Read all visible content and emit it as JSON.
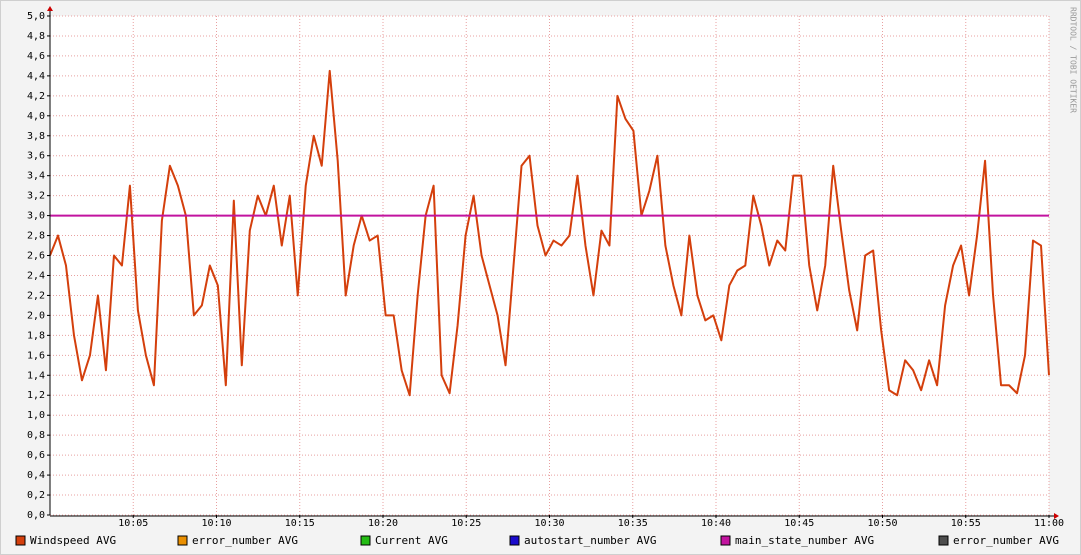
{
  "chart_data": {
    "type": "line",
    "watermark": "RRDTOOL / TOBI OETIKER",
    "xlim": [
      0,
      60
    ],
    "xticks": [
      {
        "value": 5,
        "label": "10:05"
      },
      {
        "value": 10,
        "label": "10:10"
      },
      {
        "value": 15,
        "label": "10:15"
      },
      {
        "value": 20,
        "label": "10:20"
      },
      {
        "value": 25,
        "label": "10:25"
      },
      {
        "value": 30,
        "label": "10:30"
      },
      {
        "value": 35,
        "label": "10:35"
      },
      {
        "value": 40,
        "label": "10:40"
      },
      {
        "value": 45,
        "label": "10:45"
      },
      {
        "value": 50,
        "label": "10:50"
      },
      {
        "value": 55,
        "label": "10:55"
      },
      {
        "value": 60,
        "label": "11:00"
      }
    ],
    "ylim": [
      0,
      5
    ],
    "yticks": [
      {
        "value": 0,
        "label": "0,0"
      },
      {
        "value": 0.2,
        "label": "0,2"
      },
      {
        "value": 0.4,
        "label": "0,4"
      },
      {
        "value": 0.6,
        "label": "0,6"
      },
      {
        "value": 0.8,
        "label": "0,8"
      },
      {
        "value": 1,
        "label": "1,0"
      },
      {
        "value": 1.2,
        "label": "1,2"
      },
      {
        "value": 1.4,
        "label": "1,4"
      },
      {
        "value": 1.6,
        "label": "1,6"
      },
      {
        "value": 1.8,
        "label": "1,8"
      },
      {
        "value": 2,
        "label": "2,0"
      },
      {
        "value": 2.2,
        "label": "2,2"
      },
      {
        "value": 2.4,
        "label": "2,4"
      },
      {
        "value": 2.6,
        "label": "2,6"
      },
      {
        "value": 2.8,
        "label": "2,8"
      },
      {
        "value": 3,
        "label": "3,0"
      },
      {
        "value": 3.2,
        "label": "3,2"
      },
      {
        "value": 3.4,
        "label": "3,4"
      },
      {
        "value": 3.6,
        "label": "3,6"
      },
      {
        "value": 3.8,
        "label": "3,8"
      },
      {
        "value": 4,
        "label": "4,0"
      },
      {
        "value": 4.2,
        "label": "4,2"
      },
      {
        "value": 4.4,
        "label": "4,4"
      },
      {
        "value": 4.6,
        "label": "4,6"
      },
      {
        "value": 4.8,
        "label": "4,8"
      },
      {
        "value": 5,
        "label": "5,0"
      }
    ],
    "grid": true,
    "series": [
      {
        "name": "Windspeed AVG",
        "color": "#d43f0c",
        "x": [
          0,
          0.48,
          0.96,
          1.44,
          1.92,
          2.4,
          2.88,
          3.36,
          3.84,
          4.32,
          4.8,
          5.28,
          5.76,
          6.24,
          6.72,
          7.2,
          7.68,
          8.16,
          8.64,
          9.12,
          9.6,
          10.08,
          10.56,
          11.04,
          11.52,
          12,
          12.48,
          12.96,
          13.44,
          13.92,
          14.4,
          14.88,
          15.36,
          15.84,
          16.32,
          16.8,
          17.28,
          17.76,
          18.24,
          18.72,
          19.2,
          19.68,
          20.16,
          20.64,
          21.12,
          21.6,
          22.08,
          22.56,
          23.04,
          23.52,
          24,
          24.48,
          24.96,
          25.44,
          25.92,
          26.4,
          26.88,
          27.36,
          27.84,
          28.32,
          28.8,
          29.28,
          29.76,
          30.24,
          30.72,
          31.2,
          31.68,
          32.16,
          32.64,
          33.12,
          33.6,
          34.08,
          34.56,
          35.04,
          35.52,
          36,
          36.48,
          36.96,
          37.44,
          37.92,
          38.4,
          38.88,
          39.36,
          39.84,
          40.32,
          40.8,
          41.28,
          41.76,
          42.24,
          42.72,
          43.2,
          43.68,
          44.16,
          44.64,
          45.12,
          45.6,
          46.08,
          46.56,
          47.04,
          47.52,
          48,
          48.48,
          48.96,
          49.44,
          49.92,
          50.4,
          50.88,
          51.36,
          51.84,
          52.32,
          52.8,
          53.28,
          53.76,
          54.24,
          54.72,
          55.2,
          55.68,
          56.16,
          56.64,
          57.12,
          57.6,
          58.08,
          58.56,
          59.04,
          59.52,
          60
        ],
        "values": [
          2.6,
          2.8,
          2.5,
          1.8,
          1.35,
          1.6,
          2.2,
          1.45,
          2.6,
          2.5,
          3.3,
          2.05,
          1.6,
          1.3,
          2.95,
          3.5,
          3.3,
          3.0,
          2.0,
          2.1,
          2.5,
          2.3,
          1.3,
          3.15,
          1.5,
          2.85,
          3.2,
          3.0,
          3.3,
          2.7,
          3.2,
          2.2,
          3.3,
          3.8,
          3.5,
          4.45,
          3.55,
          2.2,
          2.7,
          3.0,
          2.75,
          2.8,
          2.0,
          2.0,
          1.45,
          1.2,
          2.2,
          3.0,
          3.3,
          1.4,
          1.22,
          1.9,
          2.8,
          3.2,
          2.6,
          2.3,
          2.0,
          1.5,
          2.5,
          3.5,
          3.6,
          2.9,
          2.6,
          2.75,
          2.7,
          2.8,
          3.4,
          2.7,
          2.2,
          2.85,
          2.7,
          4.2,
          3.97,
          3.85,
          3.0,
          3.25,
          3.6,
          2.7,
          2.3,
          2.0,
          2.8,
          2.2,
          1.95,
          2.0,
          1.75,
          2.3,
          2.45,
          2.5,
          3.2,
          2.9,
          2.5,
          2.75,
          2.65,
          3.4,
          3.4,
          2.5,
          2.05,
          2.5,
          3.5,
          2.85,
          2.25,
          1.85,
          2.6,
          2.65,
          1.85,
          1.25,
          1.2,
          1.55,
          1.45,
          1.25,
          1.55,
          1.3,
          2.1,
          2.5,
          2.7,
          2.2,
          2.8,
          3.55,
          2.2,
          1.3,
          1.3,
          1.22,
          1.6,
          2.75,
          2.7,
          1.4
        ]
      },
      {
        "name": "error_number AVG",
        "color": "#ea8f00"
      },
      {
        "name": "Current AVG",
        "color": "#24bc14"
      },
      {
        "name": "autostart_number AVG",
        "color": "#1a0acc"
      },
      {
        "name": "main_state_number AVG",
        "color": "#c2139f",
        "x": [
          0,
          60
        ],
        "values": [
          3,
          3
        ]
      },
      {
        "name": "error_number AVG",
        "color": "#4d4d4d"
      }
    ]
  }
}
